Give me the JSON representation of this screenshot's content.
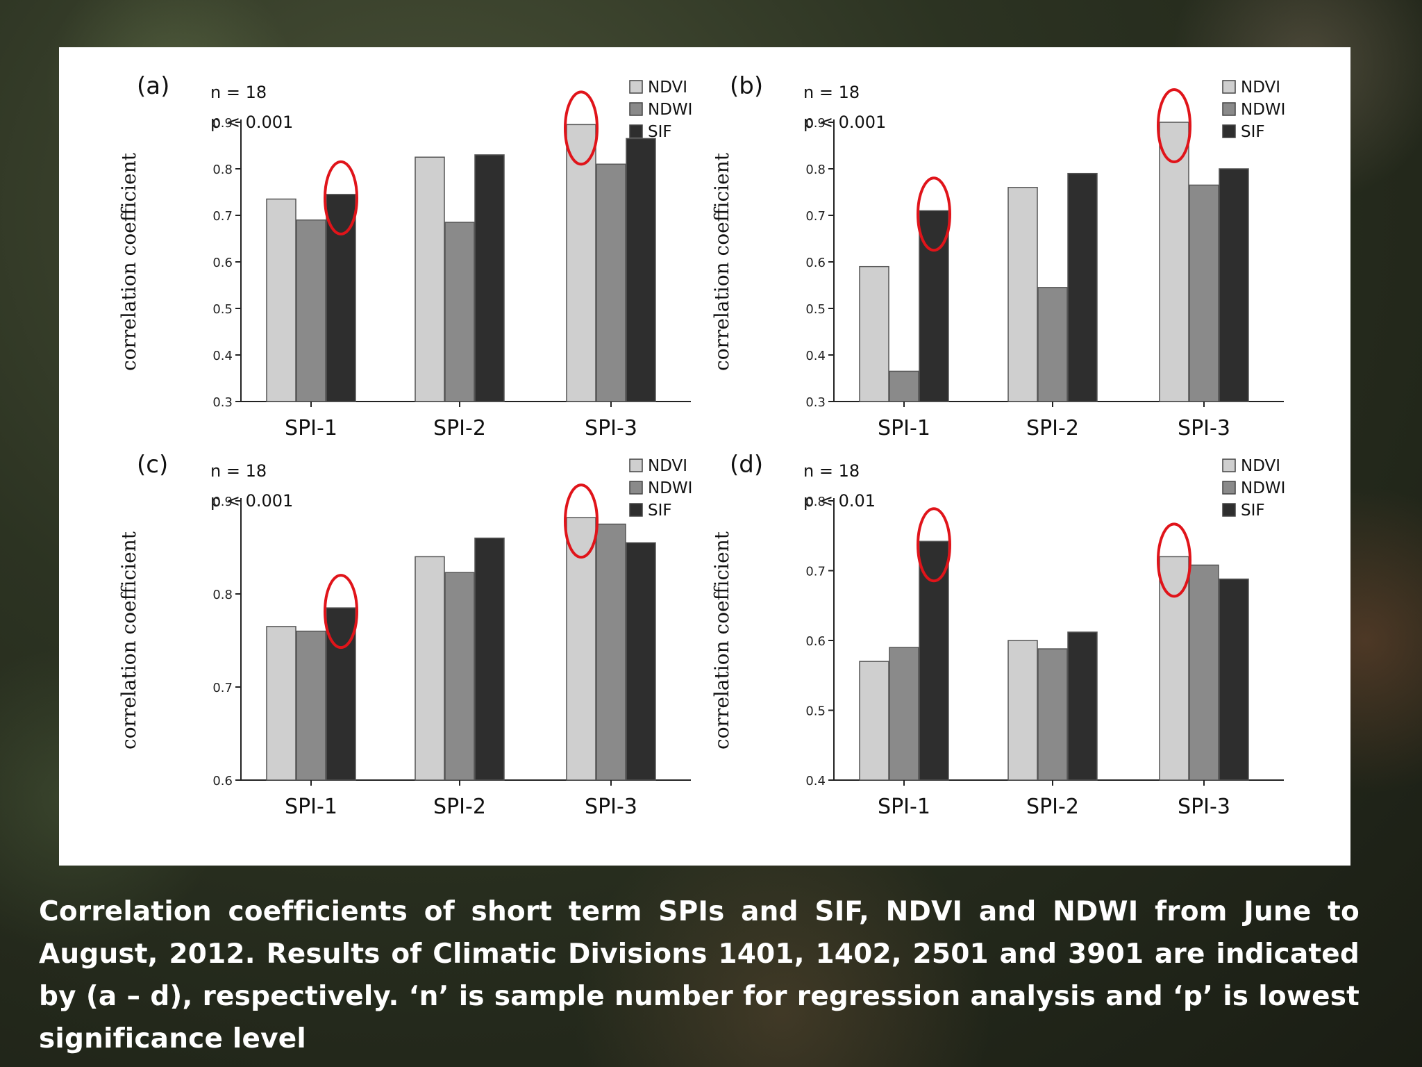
{
  "caption": "Correlation coefficients of short term SPIs and SIF, NDVI and NDWI from June to August, 2012. Results of Climatic Divisions 1401, 1402, 2501 and 3901 are indicated by (a – d), respectively. ‘n’ is sample number for regression analysis and ‘p’ is lowest significance level",
  "colors": {
    "NDVI": "#cfcfcf",
    "NDWI": "#8a8a8a",
    "SIF": "#2e2e2e",
    "highlight": "#e0141a"
  },
  "chart_data": [
    {
      "panel": "(a)",
      "type": "bar",
      "n_label": "n = 18",
      "p_label": "p < 0.001",
      "ylabel": "correlation coefficient",
      "categories": [
        "SPI-1",
        "SPI-2",
        "SPI-3"
      ],
      "ylim": [
        0.3,
        0.9
      ],
      "yticks": [
        "0.3",
        "0.4",
        "0.5",
        "0.6",
        "0.7",
        "0.8",
        "0.9"
      ],
      "legend_position": "top-right",
      "series": [
        {
          "name": "NDVI",
          "values": [
            0.735,
            0.825,
            0.895
          ]
        },
        {
          "name": "NDWI",
          "values": [
            0.69,
            0.685,
            0.81
          ]
        },
        {
          "name": "SIF",
          "values": [
            0.745,
            0.83,
            0.865
          ]
        }
      ],
      "highlighted": [
        {
          "series": "SIF",
          "category": "SPI-1"
        },
        {
          "series": "NDVI",
          "category": "SPI-3"
        }
      ]
    },
    {
      "panel": "(b)",
      "type": "bar",
      "n_label": "n = 18",
      "p_label": "p < 0.001",
      "ylabel": "correlation coefficient",
      "categories": [
        "SPI-1",
        "SPI-2",
        "SPI-3"
      ],
      "ylim": [
        0.3,
        0.9
      ],
      "yticks": [
        "0.3",
        "0.4",
        "0.5",
        "0.6",
        "0.7",
        "0.8",
        "0.9"
      ],
      "legend_position": "top-right",
      "series": [
        {
          "name": "NDVI",
          "values": [
            0.59,
            0.76,
            0.9
          ]
        },
        {
          "name": "NDWI",
          "values": [
            0.365,
            0.545,
            0.765
          ]
        },
        {
          "name": "SIF",
          "values": [
            0.71,
            0.79,
            0.8
          ]
        }
      ],
      "highlighted": [
        {
          "series": "SIF",
          "category": "SPI-1"
        },
        {
          "series": "NDVI",
          "category": "SPI-3"
        }
      ]
    },
    {
      "panel": "(c)",
      "type": "bar",
      "n_label": "n = 18",
      "p_label": "p < 0.001",
      "ylabel": "correlation coefficient",
      "categories": [
        "SPI-1",
        "SPI-2",
        "SPI-3"
      ],
      "ylim": [
        0.6,
        0.9
      ],
      "yticks": [
        "0.6",
        "0.7",
        "0.8",
        "0.9"
      ],
      "legend_position": "top-right",
      "series": [
        {
          "name": "NDVI",
          "values": [
            0.765,
            0.84,
            0.882
          ]
        },
        {
          "name": "NDWI",
          "values": [
            0.76,
            0.823,
            0.875
          ]
        },
        {
          "name": "SIF",
          "values": [
            0.785,
            0.86,
            0.855
          ]
        }
      ],
      "highlighted": [
        {
          "series": "SIF",
          "category": "SPI-1"
        },
        {
          "series": "NDVI",
          "category": "SPI-3"
        }
      ]
    },
    {
      "panel": "(d)",
      "type": "bar",
      "n_label": "n = 18",
      "p_label": "p < 0.01",
      "ylabel": "correlation coefficient",
      "categories": [
        "SPI-1",
        "SPI-2",
        "SPI-3"
      ],
      "ylim": [
        0.4,
        0.8
      ],
      "yticks": [
        "0.4",
        "0.5",
        "0.6",
        "0.7",
        "0.8"
      ],
      "legend_position": "top-right",
      "series": [
        {
          "name": "NDVI",
          "values": [
            0.57,
            0.6,
            0.72
          ]
        },
        {
          "name": "NDWI",
          "values": [
            0.59,
            0.588,
            0.708
          ]
        },
        {
          "name": "SIF",
          "values": [
            0.742,
            0.612,
            0.688
          ]
        }
      ],
      "highlighted": [
        {
          "series": "SIF",
          "category": "SPI-1"
        },
        {
          "series": "NDVI",
          "category": "SPI-3"
        }
      ]
    }
  ]
}
